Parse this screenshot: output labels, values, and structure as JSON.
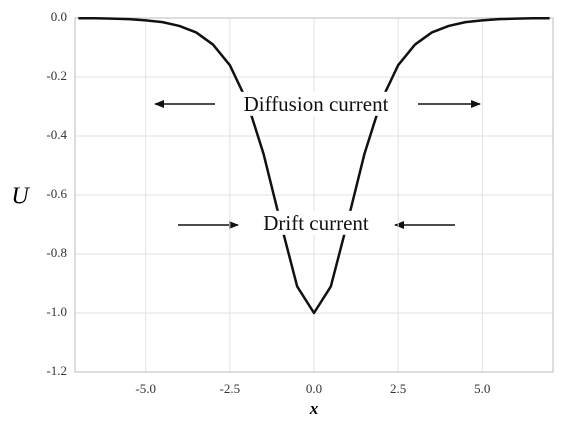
{
  "chart_data": {
    "type": "line",
    "x": [
      -7,
      -6.5,
      -6,
      -5.5,
      -5,
      -4.5,
      -4,
      -3.5,
      -3,
      -2.5,
      -2,
      -1.5,
      -1,
      -0.5,
      0,
      0.5,
      1,
      1.5,
      2,
      2.5,
      3,
      3.5,
      4,
      4.5,
      5,
      5.5,
      6,
      6.5,
      7
    ],
    "series": [
      {
        "color": "#111111",
        "values": [
          -0.001,
          -0.001,
          -0.002,
          -0.004,
          -0.008,
          -0.014,
          -0.027,
          -0.049,
          -0.09,
          -0.16,
          -0.28,
          -0.46,
          -0.69,
          -0.91,
          -1.0,
          -0.91,
          -0.69,
          -0.46,
          -0.28,
          -0.16,
          -0.09,
          -0.049,
          -0.027,
          -0.014,
          -0.008,
          -0.004,
          -0.002,
          -0.001,
          -0.001
        ]
      }
    ],
    "xlim": [
      -7.1,
      7.1
    ],
    "ylim": [
      -1.2,
      0
    ],
    "xticks": [
      {
        "value": -5,
        "label": "-5.0"
      },
      -2.5,
      {
        "value": 0,
        "label": "0.0"
      },
      2.5,
      {
        "value": 5,
        "label": "5.0"
      }
    ],
    "yticks": [
      {
        "value": 0,
        "label": "0.0"
      },
      -0.2,
      -0.4,
      -0.6,
      -0.8,
      {
        "value": -1,
        "label": "-1.0"
      },
      -1.2
    ],
    "xlabel": "x",
    "ylabel": "U",
    "grid": true,
    "annotations": [
      "Diffusion current",
      "Drift current"
    ]
  }
}
